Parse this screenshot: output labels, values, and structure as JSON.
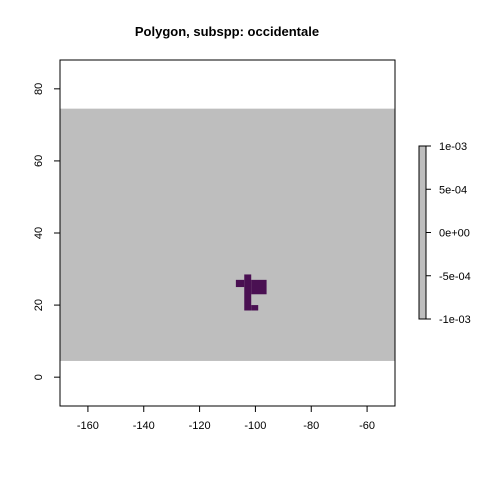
{
  "chart_data": {
    "type": "heatmap",
    "title": "Polygon, subspp: occidentale",
    "xlabel": "",
    "ylabel": "",
    "xlim": [
      -170,
      -50
    ],
    "ylim": [
      -8,
      88
    ],
    "x_ticks": [
      -160,
      -140,
      -120,
      -100,
      -80,
      -60
    ],
    "y_ticks": [
      0,
      20,
      40,
      60,
      80
    ],
    "raster_extent": {
      "xmin": -170,
      "xmax": -50,
      "ymin": 4.5,
      "ymax": 74.5
    },
    "background_color": "#bebebe",
    "polygon_color": "#4a1052",
    "polygon_cells": [
      {
        "x0": -104,
        "x1": -101.5,
        "y0": 18.5,
        "y1": 28.5
      },
      {
        "x0": -107,
        "x1": -104,
        "y0": 25,
        "y1": 27
      },
      {
        "x0": -101.5,
        "x1": -96,
        "y0": 23,
        "y1": 27
      },
      {
        "x0": -101.5,
        "x1": -99,
        "y0": 18.5,
        "y1": 20
      }
    ],
    "legend": {
      "position": "right",
      "color": "#bebebe",
      "range": [
        -0.001,
        0.001
      ],
      "ticks": [
        {
          "value": 0.001,
          "label": "1e-03"
        },
        {
          "value": 0.0005,
          "label": "5e-04"
        },
        {
          "value": 0,
          "label": "0e+00"
        },
        {
          "value": -0.0005,
          "label": "-5e-04"
        },
        {
          "value": -0.001,
          "label": "-1e-03"
        }
      ]
    }
  }
}
